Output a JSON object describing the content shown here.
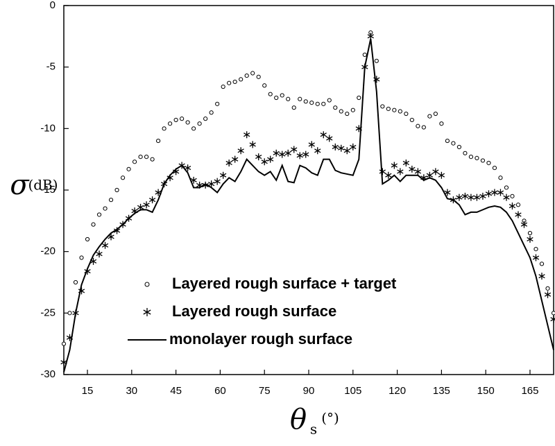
{
  "chart_data": {
    "type": "line",
    "ylabel": {
      "symbol": "σ",
      "unit": "(dB)"
    },
    "xlabel": {
      "symbol": "θ",
      "subscript": "s",
      "unit": "(°)"
    },
    "xlim": [
      7,
      173
    ],
    "ylim": [
      -30,
      0
    ],
    "xticks": [
      15,
      30,
      45,
      60,
      75,
      90,
      105,
      120,
      135,
      150,
      165
    ],
    "yticks": [
      0,
      -5,
      -10,
      -15,
      -20,
      -25,
      -30
    ],
    "legend": "lower center",
    "x": [
      7,
      9,
      11,
      13,
      15,
      17,
      19,
      21,
      23,
      25,
      27,
      29,
      31,
      33,
      35,
      37,
      39,
      41,
      43,
      45,
      47,
      49,
      51,
      53,
      55,
      57,
      59,
      61,
      63,
      65,
      67,
      69,
      71,
      73,
      75,
      77,
      79,
      81,
      83,
      85,
      87,
      89,
      91,
      93,
      95,
      97,
      99,
      101,
      103,
      105,
      107,
      109,
      111,
      113,
      115,
      117,
      119,
      121,
      123,
      125,
      127,
      129,
      131,
      133,
      135,
      137,
      139,
      141,
      143,
      145,
      147,
      149,
      151,
      153,
      155,
      157,
      159,
      161,
      163,
      165,
      167,
      169,
      171,
      173
    ],
    "series": [
      {
        "name": "Layered rough surface + target",
        "style": "circle",
        "color": "#000000",
        "values": [
          -27.5,
          -25,
          -22.5,
          -20.5,
          -19,
          -17.8,
          -17,
          -16.5,
          -15.8,
          -15,
          -14,
          -13.3,
          -12.7,
          -12.3,
          -12.3,
          -12.5,
          -11,
          -10,
          -9.6,
          -9.3,
          -9.2,
          -9.5,
          -10,
          -9.6,
          -9.2,
          -8.7,
          -8,
          -6.6,
          -6.3,
          -6.2,
          -6,
          -5.7,
          -5.5,
          -5.8,
          -6.5,
          -7.2,
          -7.5,
          -7.3,
          -7.6,
          -8.3,
          -7.6,
          -7.8,
          -7.9,
          -8,
          -8,
          -7.7,
          -8.3,
          -8.6,
          -8.8,
          -8.5,
          -7.5,
          -4,
          -2.2,
          -4.5,
          -8.2,
          -8.4,
          -8.5,
          -8.6,
          -8.8,
          -9.3,
          -9.8,
          -9.9,
          -9,
          -8.8,
          -9.6,
          -11,
          -11.2,
          -11.5,
          -12,
          -12.3,
          -12.4,
          -12.6,
          -12.8,
          -13.2,
          -14,
          -14.8,
          -15.5,
          -16.2,
          -17.5,
          -18.5,
          -19.8,
          -21,
          -23,
          -25
        ]
      },
      {
        "name": "Layered rough surface",
        "style": "asterisk",
        "color": "#000000",
        "values": [
          -29,
          -27,
          -25,
          -23.2,
          -21.6,
          -20.8,
          -20.2,
          -19.5,
          -18.8,
          -18.3,
          -17.8,
          -17.3,
          -16.7,
          -16.4,
          -16.2,
          -15.8,
          -15.2,
          -14.5,
          -14,
          -13.5,
          -13,
          -13.2,
          -14.2,
          -14.6,
          -14.6,
          -14.5,
          -14.3,
          -13.8,
          -12.8,
          -12.5,
          -11.8,
          -10.5,
          -11.3,
          -12.3,
          -12.7,
          -12.5,
          -12,
          -12.1,
          -12,
          -11.7,
          -12.2,
          -12.1,
          -11.3,
          -11.8,
          -10.5,
          -10.8,
          -11.5,
          -11.6,
          -11.8,
          -11.5,
          -10,
          -5,
          -2.5,
          -6,
          -13.5,
          -13.8,
          -13,
          -13.5,
          -12.8,
          -13.3,
          -13.5,
          -14,
          -13.8,
          -13.5,
          -13.8,
          -15.2,
          -15.8,
          -15.6,
          -15.5,
          -15.6,
          -15.6,
          -15.5,
          -15.3,
          -15.2,
          -15.2,
          -15.6,
          -16.3,
          -17,
          -17.8,
          -19,
          -20.5,
          -22,
          -23.5,
          -25.5
        ]
      },
      {
        "name": "monolayer rough surface",
        "style": "line",
        "color": "#000000",
        "values": [
          -29.8,
          -28,
          -25,
          -22.7,
          -21.4,
          -20.3,
          -19.6,
          -19,
          -18.5,
          -18.2,
          -17.8,
          -17.3,
          -16.9,
          -16.6,
          -16.6,
          -16.8,
          -15.8,
          -14.5,
          -13.8,
          -13.3,
          -13,
          -13.6,
          -14.8,
          -14.8,
          -14.5,
          -14.8,
          -15.2,
          -14.5,
          -14,
          -14.3,
          -13.5,
          -12.5,
          -13,
          -13.5,
          -13.8,
          -13.5,
          -14.2,
          -13,
          -14.3,
          -14.4,
          -13,
          -13.2,
          -13.6,
          -13.8,
          -12.5,
          -12.5,
          -13.4,
          -13.6,
          -13.7,
          -13.8,
          -12.5,
          -5,
          -2.7,
          -7,
          -14.5,
          -14.2,
          -13.8,
          -14.3,
          -13.8,
          -13.8,
          -13.8,
          -14.2,
          -14,
          -14.2,
          -14.8,
          -15.7,
          -15.8,
          -16.2,
          -17,
          -16.8,
          -16.8,
          -16.6,
          -16.4,
          -16.3,
          -16.4,
          -16.8,
          -17.5,
          -18.5,
          -19.5,
          -20.5,
          -22,
          -24,
          -26,
          -28
        ]
      }
    ]
  }
}
